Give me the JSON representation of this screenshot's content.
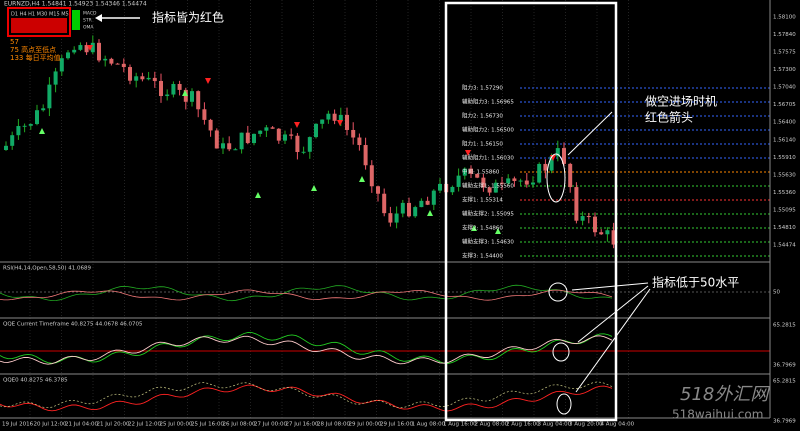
{
  "header": {
    "symbol": "EURNZD,H4 1.54841 1.54923 1.54346 1.54474",
    "timeframes": "D1 H4 H1 M30 M15 M5",
    "side_labels": [
      "MACD",
      "STR",
      "OMA"
    ],
    "stats": [
      "57",
      "75 高点至低点",
      "133 每日平均值"
    ]
  },
  "annotations": {
    "red_all": "指标皆为红色",
    "short_entry": "做空进场时机",
    "red_arrow": "红色箭头",
    "below_50": "指标低于50水平"
  },
  "levels": [
    "阻力3: 1.57290",
    "辅助阻力3: 1.56965",
    "阻力2: 1.56730",
    "辅助阻力2: 1.56500",
    "阻力1: 1.56150",
    "辅助阻力1: 1.56030",
    "中间: 1.55860",
    "辅助支撑1: 1.55560",
    "支撑1: 1.55314",
    "辅助支撑2: 1.55095",
    "支撑2: 1.54860",
    "辅助支撑3: 1.54630",
    "支撑3: 1.54400"
  ],
  "price_axis": [
    "1.58100",
    "1.57840",
    "1.57575",
    "1.57300",
    "1.57040",
    "1.56705",
    "1.56400",
    "1.56140",
    "1.55910",
    "1.55630",
    "1.55360",
    "1.55095",
    "1.54810",
    "1.54474"
  ],
  "panels": [
    {
      "title": "RSI(H4,14,Open,58,50) 41.0689",
      "axis": [
        "50"
      ]
    },
    {
      "title": "QQE Current Timeframe 40.8275 44.0678 46.0705",
      "axis": [
        "65.2815",
        "36.7969"
      ]
    },
    {
      "title": "QQE0 40.8275 46.3785",
      "axis": [
        "65.2815",
        "36.7969"
      ]
    }
  ],
  "time_axis": [
    "19 Jul 2016",
    "20 Jul 12:00",
    "21 Jul 04:00",
    "21 Jul 20:00",
    "22 Jul 12:00",
    "25 Jul 00:00",
    "25 Jul 16:00",
    "26 Jul 08:00",
    "27 Jul 00:00",
    "27 Jul 16:00",
    "28 Jul 08:00",
    "29 Jul 00:00",
    "29 Jul 16:00",
    "1 Aug 08:00",
    "1 Aug 16:00",
    "2 Aug 08:00",
    "2 Aug 16:00",
    "3 Aug 04:00",
    "3 Aug 20:00",
    "4 Aug 04:00"
  ],
  "watermark": {
    "name": "518外汇网",
    "url": "518waihui.com"
  }
}
